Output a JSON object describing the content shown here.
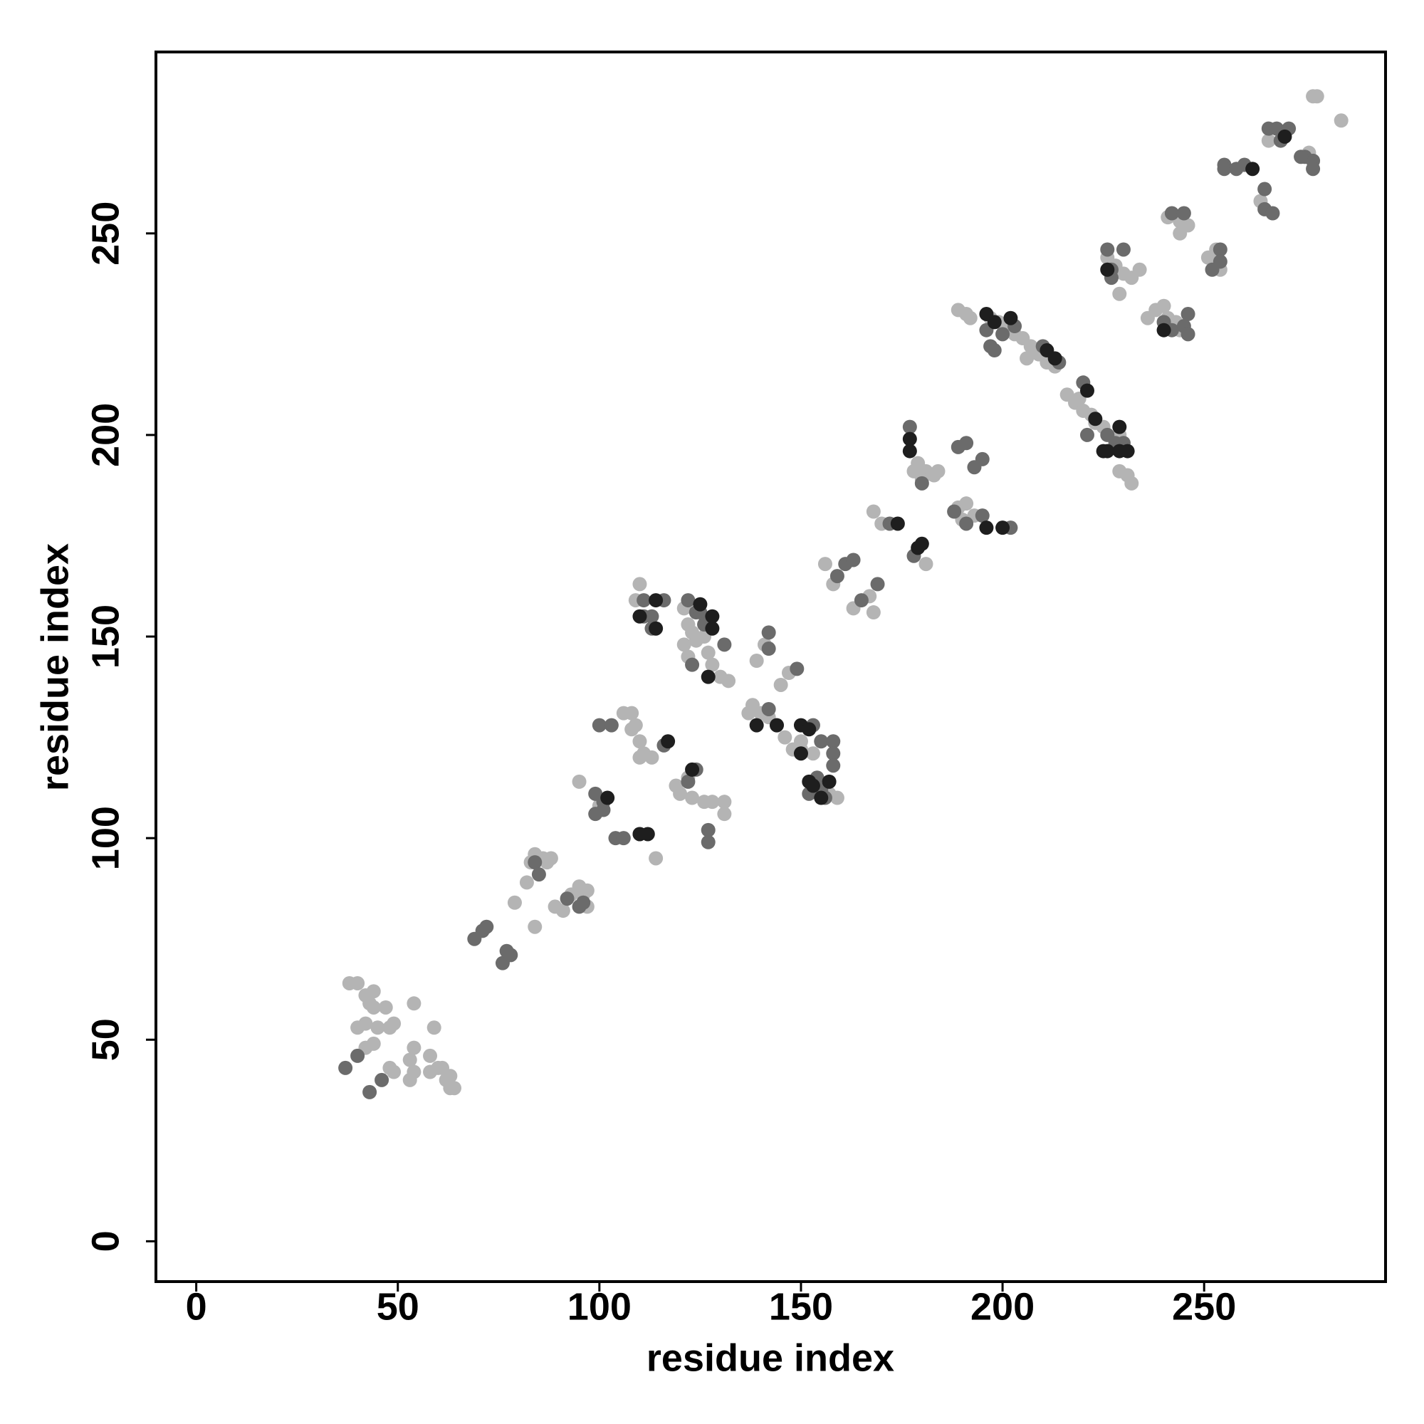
{
  "chart_data": {
    "type": "scatter",
    "xlabel": "residue index",
    "ylabel": "residue index",
    "xlim": [
      -10,
      295
    ],
    "ylim": [
      -10,
      295
    ],
    "xticks": [
      0,
      50,
      100,
      150,
      200,
      250
    ],
    "yticks": [
      0,
      50,
      100,
      150,
      200,
      250
    ],
    "grid": false,
    "series": [
      {
        "color": "#b4b4b4",
        "x": [
          38,
          40,
          42,
          43,
          44,
          44,
          45,
          40,
          42,
          47,
          48,
          49,
          42,
          44,
          54,
          59,
          54,
          53,
          54,
          53,
          49,
          48,
          58,
          58,
          60,
          61,
          62,
          63,
          64,
          63,
          82,
          83,
          84,
          86,
          87,
          88,
          79,
          84,
          91,
          89,
          95,
          97,
          96,
          93,
          97,
          95,
          106,
          108,
          108,
          110,
          111,
          113,
          110,
          109,
          119,
          120,
          122,
          123,
          126,
          128,
          131,
          131,
          114,
          100,
          110,
          109,
          121,
          122,
          123,
          124,
          127,
          128,
          130,
          132,
          121,
          122,
          126,
          137,
          138,
          140,
          142,
          144,
          146,
          148,
          150,
          139,
          141,
          145,
          147,
          150,
          153,
          157,
          159,
          156,
          158,
          163,
          167,
          168,
          168,
          170,
          181,
          178,
          179,
          181,
          183,
          184,
          189,
          190,
          191,
          193,
          180,
          189,
          191,
          192,
          197,
          199,
          201,
          203,
          205,
          207,
          209,
          211,
          213,
          206,
          216,
          218,
          220,
          222,
          223,
          225,
          229,
          229,
          231,
          232,
          219,
          226,
          228,
          230,
          232,
          229,
          234,
          236,
          238,
          240,
          241,
          243,
          244,
          241,
          244,
          246,
          244,
          251,
          253,
          254,
          264,
          277,
          278,
          284,
          276,
          266
        ],
        "values": [
          64,
          64,
          61,
          59,
          62,
          58,
          53,
          53,
          54,
          58,
          53,
          54,
          48,
          49,
          59,
          53,
          48,
          45,
          42,
          40,
          42,
          43,
          46,
          42,
          43,
          43,
          40,
          38,
          38,
          41,
          89,
          94,
          96,
          95,
          94,
          95,
          84,
          78,
          82,
          83,
          88,
          87,
          86,
          86,
          83,
          114,
          131,
          131,
          127,
          124,
          121,
          120,
          120,
          128,
          113,
          111,
          115,
          110,
          109,
          109,
          106,
          109,
          95,
          108,
          163,
          159,
          157,
          153,
          151,
          149,
          146,
          143,
          140,
          139,
          148,
          145,
          150,
          131,
          133,
          131,
          130,
          128,
          125,
          122,
          122,
          144,
          148,
          138,
          141,
          124,
          121,
          111,
          110,
          168,
          163,
          157,
          160,
          156,
          181,
          178,
          168,
          191,
          193,
          191,
          190,
          191,
          182,
          179,
          183,
          180,
          189,
          231,
          230,
          229,
          229,
          228,
          227,
          225,
          224,
          222,
          220,
          218,
          217,
          219,
          210,
          208,
          206,
          205,
          203,
          202,
          200,
          191,
          190,
          188,
          209,
          244,
          242,
          240,
          239,
          235,
          241,
          229,
          231,
          232,
          229,
          228,
          226,
          254,
          253,
          252,
          250,
          244,
          246,
          241,
          258,
          284,
          284,
          278,
          270,
          273
        ]
      },
      {
        "color": "#6b6b6b",
        "x": [
          37,
          40,
          43,
          46,
          69,
          71,
          72,
          76,
          78,
          77,
          84,
          85,
          92,
          95,
          96,
          100,
          103,
          99,
          101,
          101,
          116,
          124,
          127,
          127,
          104,
          106,
          110,
          122,
          99,
          111,
          111,
          113,
          113,
          116,
          122,
          124,
          125,
          126,
          131,
          123,
          142,
          142,
          149,
          142,
          153,
          155,
          158,
          158,
          158,
          154,
          155,
          152,
          156,
          159,
          161,
          163,
          165,
          169,
          172,
          177,
          178,
          180,
          189,
          191,
          193,
          195,
          188,
          191,
          195,
          202,
          196,
          197,
          200,
          203,
          210,
          214,
          220,
          221,
          226,
          228,
          230,
          198,
          226,
          230,
          227,
          240,
          242,
          245,
          246,
          242,
          245,
          246,
          254,
          254,
          252,
          227,
          255,
          255,
          258,
          260,
          265,
          265,
          267,
          266,
          268,
          270,
          269,
          275,
          277,
          277,
          274,
          271
        ],
        "values": [
          43,
          46,
          37,
          40,
          75,
          77,
          78,
          69,
          71,
          72,
          94,
          91,
          85,
          83,
          84,
          128,
          128,
          111,
          109,
          107,
          123,
          117,
          99,
          102,
          100,
          100,
          101,
          114,
          106,
          159,
          155,
          155,
          152,
          159,
          159,
          156,
          156,
          153,
          148,
          143,
          151,
          147,
          142,
          132,
          128,
          124,
          124,
          121,
          118,
          115,
          112,
          111,
          110,
          165,
          168,
          169,
          159,
          163,
          178,
          202,
          170,
          188,
          197,
          198,
          192,
          194,
          181,
          178,
          180,
          177,
          226,
          222,
          225,
          227,
          222,
          218,
          213,
          200,
          200,
          198,
          198,
          221,
          246,
          246,
          239,
          228,
          226,
          227,
          230,
          255,
          255,
          225,
          246,
          243,
          241,
          241,
          267,
          266,
          266,
          267,
          256,
          261,
          255,
          276,
          276,
          275,
          273,
          269,
          268,
          266,
          269,
          276
        ]
      },
      {
        "color": "#1e1e1e",
        "x": [
          102,
          117,
          123,
          110,
          112,
          114,
          125,
          114,
          128,
          128,
          127,
          110,
          139,
          150,
          152,
          150,
          152,
          157,
          155,
          144,
          153,
          177,
          177,
          179,
          174,
          196,
          200,
          180,
          196,
          198,
          202,
          211,
          213,
          221,
          223,
          226,
          229,
          231,
          229,
          225,
          226,
          240,
          262,
          270
        ],
        "values": [
          110,
          124,
          117,
          101,
          101,
          159,
          158,
          152,
          155,
          152,
          140,
          155,
          128,
          128,
          127,
          121,
          114,
          114,
          110,
          128,
          113,
          199,
          196,
          172,
          178,
          177,
          177,
          173,
          230,
          228,
          229,
          221,
          219,
          211,
          204,
          196,
          196,
          196,
          202,
          196,
          241,
          226,
          266,
          274
        ]
      }
    ]
  }
}
